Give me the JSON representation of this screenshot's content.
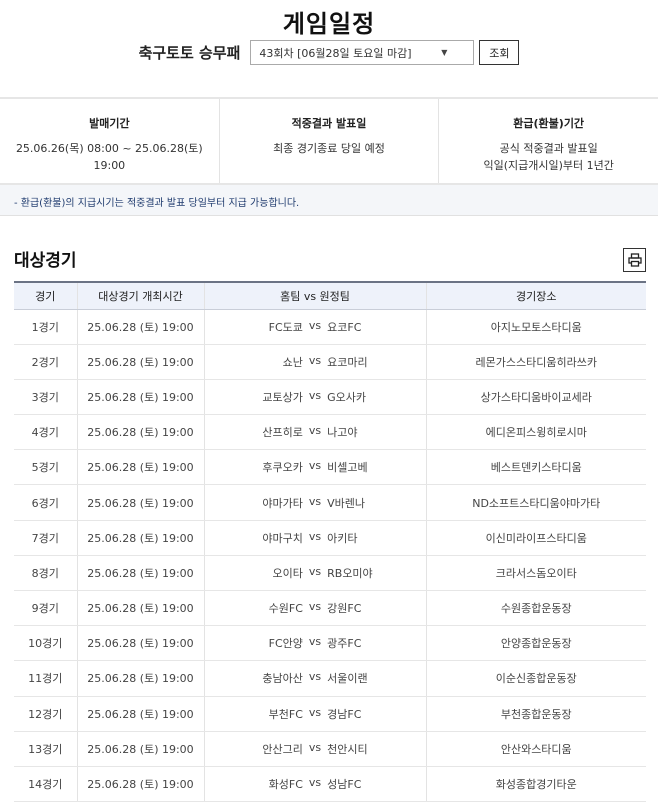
{
  "page": {
    "title": "게임일정"
  },
  "selector": {
    "game": "축구토토 승무패",
    "round": "43회차 [06월28일 토요일 마감]",
    "search_label": "조회"
  },
  "info": [
    {
      "title": "발매기간",
      "lines": [
        "25.06.26(목) 08:00 ~ 25.06.28(토) 19:00"
      ]
    },
    {
      "title": "적중결과 발표일",
      "lines": [
        "최종 경기종료 당일 예정"
      ]
    },
    {
      "title": "환급(환불)기간",
      "lines": [
        "공식 적중결과 발표일",
        "익일(지급개시일)부터 1년간"
      ]
    }
  ],
  "note": "- 환급(환불)의 지급시기는 적중결과 발표 당일부터 지급 가능합니다.",
  "section": {
    "title": "대상경기",
    "print_icon": "printer-icon"
  },
  "table": {
    "headers": [
      "경기",
      "대상경기 개최시간",
      "홈팀 vs 원정팀",
      "경기장소"
    ],
    "vs": "vs",
    "rows": [
      {
        "no": "1경기",
        "time": "25.06.28 (토) 19:00",
        "home": "FC도쿄",
        "away": "요코FC",
        "venue": "아지노모토스타디움"
      },
      {
        "no": "2경기",
        "time": "25.06.28 (토) 19:00",
        "home": "쇼난",
        "away": "요코마리",
        "venue": "레몬가스스타디움히라쓰카"
      },
      {
        "no": "3경기",
        "time": "25.06.28 (토) 19:00",
        "home": "교토상가",
        "away": "G오사카",
        "venue": "상가스타디움바이교세라"
      },
      {
        "no": "4경기",
        "time": "25.06.28 (토) 19:00",
        "home": "산프히로",
        "away": "나고야",
        "venue": "에디온피스윙히로시마"
      },
      {
        "no": "5경기",
        "time": "25.06.28 (토) 19:00",
        "home": "후쿠오카",
        "away": "비셀고베",
        "venue": "베스트덴키스타디움"
      },
      {
        "no": "6경기",
        "time": "25.06.28 (토) 19:00",
        "home": "야마가타",
        "away": "V바렌나",
        "venue": "ND소프트스타디움야마가타"
      },
      {
        "no": "7경기",
        "time": "25.06.28 (토) 19:00",
        "home": "야마구치",
        "away": "아키타",
        "venue": "이신미라이프스타디움"
      },
      {
        "no": "8경기",
        "time": "25.06.28 (토) 19:00",
        "home": "오이타",
        "away": "RB오미야",
        "venue": "크라서스돔오이타"
      },
      {
        "no": "9경기",
        "time": "25.06.28 (토) 19:00",
        "home": "수원FC",
        "away": "강원FC",
        "venue": "수원종합운동장"
      },
      {
        "no": "10경기",
        "time": "25.06.28 (토) 19:00",
        "home": "FC안양",
        "away": "광주FC",
        "venue": "안양종합운동장"
      },
      {
        "no": "11경기",
        "time": "25.06.28 (토) 19:00",
        "home": "충남아산",
        "away": "서울이랜",
        "venue": "이순신종합운동장"
      },
      {
        "no": "12경기",
        "time": "25.06.28 (토) 19:00",
        "home": "부천FC",
        "away": "경남FC",
        "venue": "부천종합운동장"
      },
      {
        "no": "13경기",
        "time": "25.06.28 (토) 19:00",
        "home": "안산그리",
        "away": "천안시티",
        "venue": "안산와스타디움"
      },
      {
        "no": "14경기",
        "time": "25.06.28 (토) 19:00",
        "home": "화성FC",
        "away": "성남FC",
        "venue": "화성종합경기타운"
      }
    ]
  }
}
